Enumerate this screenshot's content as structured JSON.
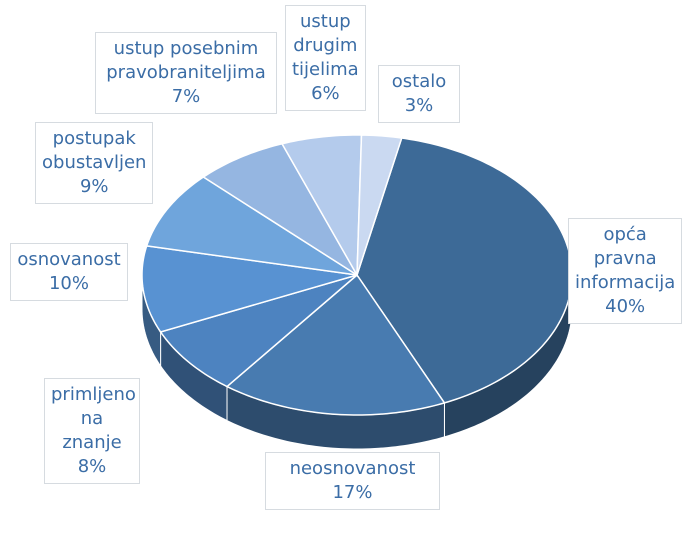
{
  "chart_data": {
    "type": "pie",
    "three_d": true,
    "categories": [
      "opća pravna informacija",
      "neosnovanost",
      "primljeno na znanje",
      "osnovanost",
      "postupak obustavljen",
      "ustup posebnim pravobraniteljima",
      "ustup drugim tijelima",
      "ostalo"
    ],
    "values": [
      40,
      17,
      8,
      10,
      9,
      7,
      6,
      3
    ],
    "value_labels": [
      "40%",
      "17%",
      "8%",
      "10%",
      "9%",
      "7%",
      "6%",
      "3%"
    ],
    "colors": [
      "#3d6a97",
      "#487bb0",
      "#4d83c0",
      "#5892d2",
      "#6fa5dc",
      "#95b6e1",
      "#b4cbec",
      "#cad9f1"
    ]
  }
}
